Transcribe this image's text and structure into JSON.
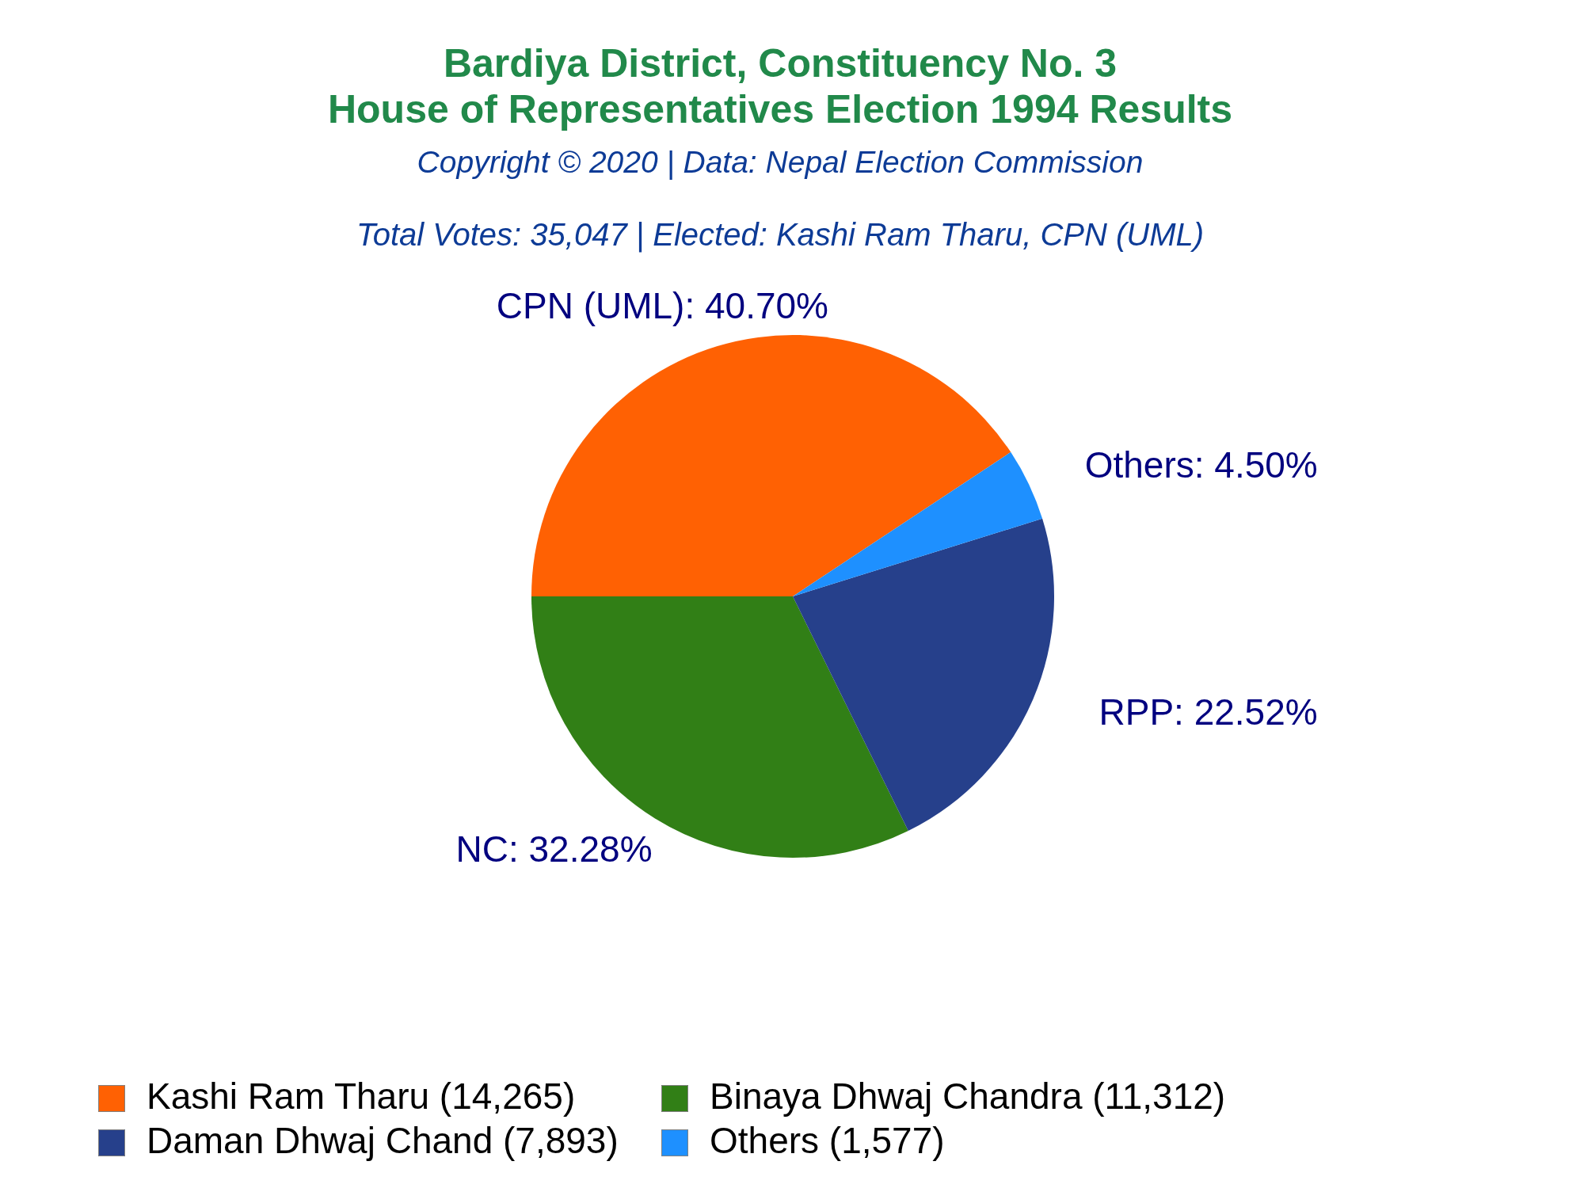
{
  "chart_data": {
    "type": "pie",
    "title": "Bardiya District, Constituency No. 3\nHouse of Representatives Election 1994 Results",
    "subtitle": "Total Votes: 35,047 | Elected: Kashi Ram Tharu, CPN (UML)",
    "annotations": [
      "Copyright © 2020 | Data: Nepal Election Commission"
    ],
    "categories": [
      "Kashi Ram Tharu (14,265)",
      "Binaya Dhwaj Chandra (11,312)",
      "Daman Dhwaj Chand (7,893)",
      "Others (1,577)"
    ],
    "values": [
      40.7,
      32.28,
      22.52,
      4.5
    ],
    "colors": [
      "#ff6103",
      "#317f16",
      "#26408b",
      "#1e90ff"
    ],
    "value_labels": [
      "CPN (UML): 40.70%",
      "NC: 32.28%",
      "RPP: 22.52%",
      "Others: 4.50%"
    ],
    "legend": "bottom"
  }
}
